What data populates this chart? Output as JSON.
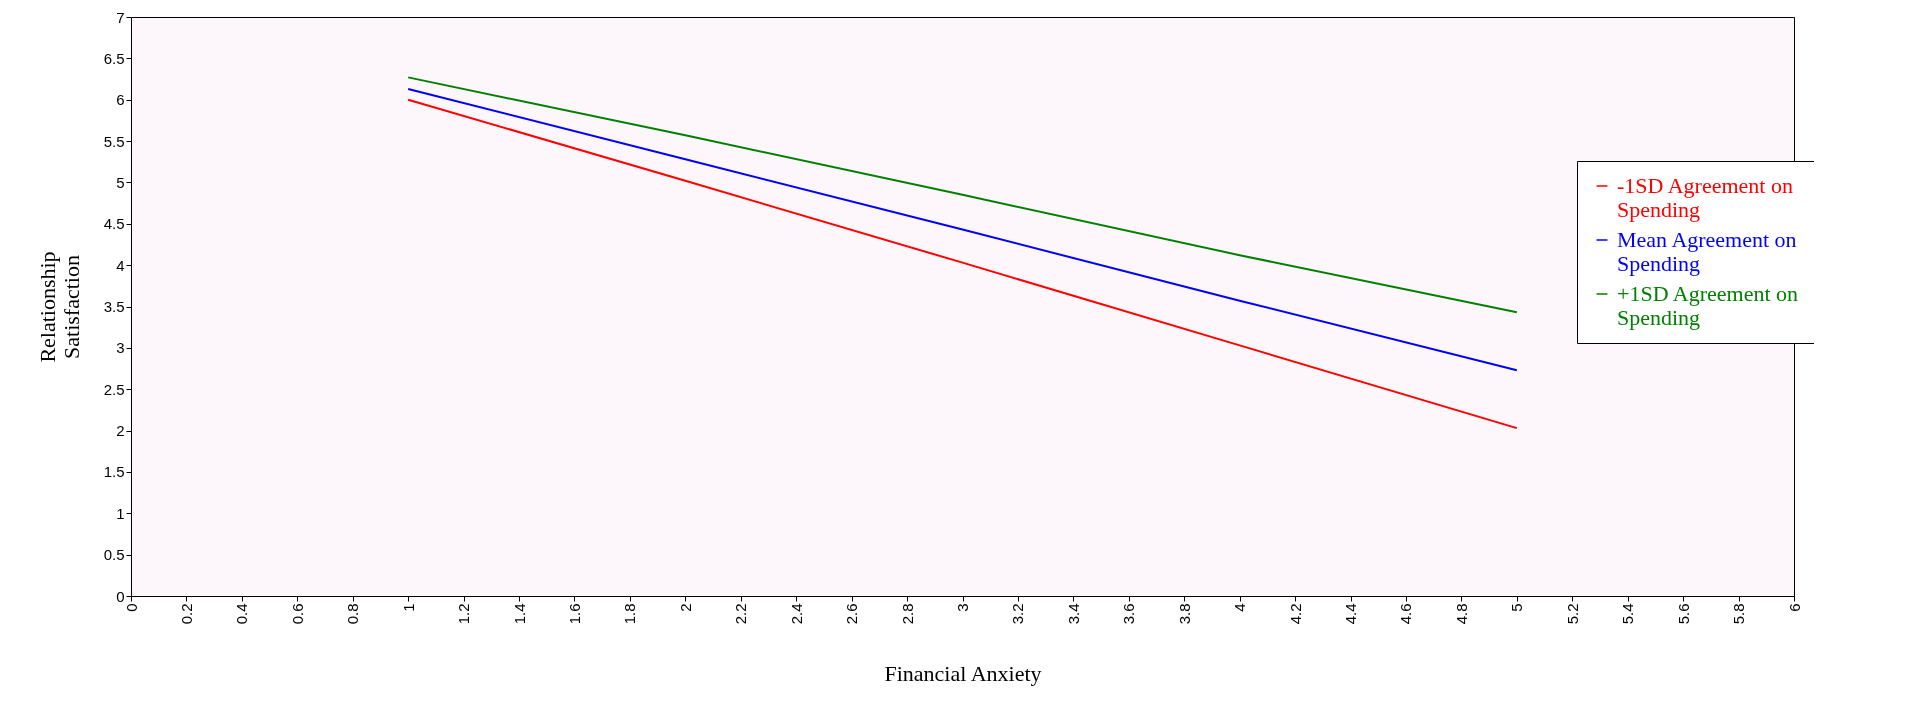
{
  "chart_data": {
    "type": "line",
    "xlabel": "Financial Anxiety",
    "ylabel": "Relationship Satisfaction",
    "x": [
      1,
      2,
      3,
      4,
      5
    ],
    "series": [
      {
        "name": "-1SD Agreement on Spending",
        "color": "#ff0000",
        "values": [
          6.0,
          5.02,
          4.03,
          3.03,
          2.03
        ]
      },
      {
        "name": "Mean Agreement on Spending",
        "color": "#0000ff",
        "values": [
          6.13,
          5.28,
          4.43,
          3.57,
          2.73
        ]
      },
      {
        "name": "+1SD Agreement on Spending",
        "color": "#008000",
        "values": [
          6.27,
          5.57,
          4.85,
          4.12,
          3.43
        ]
      }
    ],
    "xlim": [
      0,
      6
    ],
    "xticks": [
      0,
      0.2,
      0.4,
      0.6,
      0.8,
      1,
      1.2,
      1.4,
      1.6,
      1.8,
      2,
      2.2,
      2.4,
      2.6,
      2.8,
      3,
      3.2,
      3.4,
      3.6,
      3.8,
      4,
      4.2,
      4.4,
      4.6,
      4.8,
      5,
      5.2,
      5.4,
      5.6,
      5.8,
      6
    ],
    "ylim": [
      0,
      7
    ],
    "yticks": [
      0,
      0.5,
      1,
      1.5,
      2,
      2.5,
      3,
      3.5,
      4,
      4.5,
      5,
      5.5,
      6,
      6.5,
      7
    ],
    "legend": "right",
    "marker": "none",
    "line_style": "solid"
  }
}
